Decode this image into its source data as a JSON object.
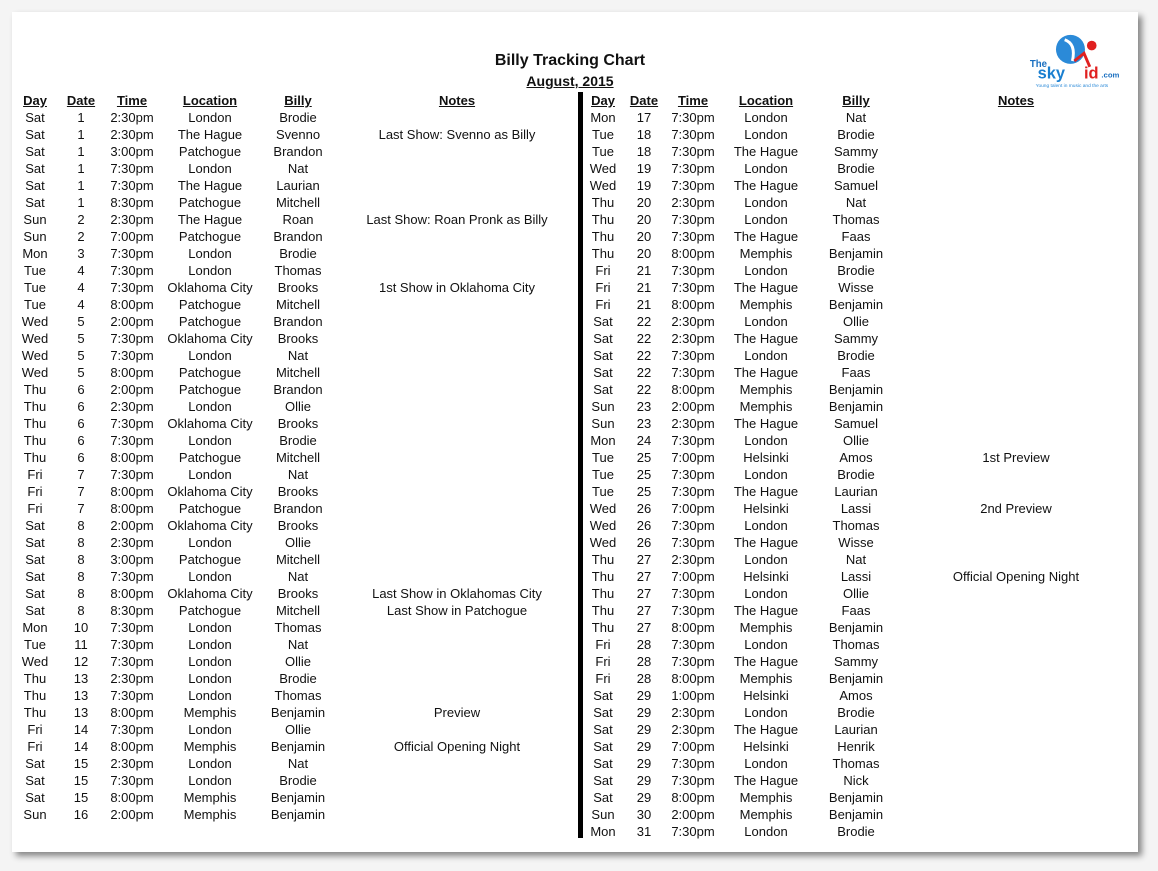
{
  "title": "Billy Tracking Chart",
  "subtitle": "August, 2015",
  "logo": {
    "text_the": "The",
    "text_brand": "skyKid",
    "text_domain": ".com",
    "tagline": "Young talent in music and the arts"
  },
  "headers": [
    "Day",
    "Date",
    "Time",
    "Location",
    "Billy",
    "Notes"
  ],
  "left_rows": [
    [
      "Sat",
      "1",
      "2:30pm",
      "London",
      "Brodie",
      ""
    ],
    [
      "Sat",
      "1",
      "2:30pm",
      "The Hague",
      "Svenno",
      "Last Show: Svenno as Billy"
    ],
    [
      "Sat",
      "1",
      "3:00pm",
      "Patchogue",
      "Brandon",
      ""
    ],
    [
      "Sat",
      "1",
      "7:30pm",
      "London",
      "Nat",
      ""
    ],
    [
      "Sat",
      "1",
      "7:30pm",
      "The Hague",
      "Laurian",
      ""
    ],
    [
      "Sat",
      "1",
      "8:30pm",
      "Patchogue",
      "Mitchell",
      ""
    ],
    [
      "Sun",
      "2",
      "2:30pm",
      "The Hague",
      "Roan",
      "Last Show: Roan Pronk as Billy"
    ],
    [
      "Sun",
      "2",
      "7:00pm",
      "Patchogue",
      "Brandon",
      ""
    ],
    [
      "Mon",
      "3",
      "7:30pm",
      "London",
      "Brodie",
      ""
    ],
    [
      "Tue",
      "4",
      "7:30pm",
      "London",
      "Thomas",
      ""
    ],
    [
      "Tue",
      "4",
      "7:30pm",
      "Oklahoma City",
      "Brooks",
      "1st Show in Oklahoma City"
    ],
    [
      "Tue",
      "4",
      "8:00pm",
      "Patchogue",
      "Mitchell",
      ""
    ],
    [
      "Wed",
      "5",
      "2:00pm",
      "Patchogue",
      "Brandon",
      ""
    ],
    [
      "Wed",
      "5",
      "7:30pm",
      "Oklahoma City",
      "Brooks",
      ""
    ],
    [
      "Wed",
      "5",
      "7:30pm",
      "London",
      "Nat",
      ""
    ],
    [
      "Wed",
      "5",
      "8:00pm",
      "Patchogue",
      "Mitchell",
      ""
    ],
    [
      "Thu",
      "6",
      "2:00pm",
      "Patchogue",
      "Brandon",
      ""
    ],
    [
      "Thu",
      "6",
      "2:30pm",
      "London",
      "Ollie",
      ""
    ],
    [
      "Thu",
      "6",
      "7:30pm",
      "Oklahoma City",
      "Brooks",
      ""
    ],
    [
      "Thu",
      "6",
      "7:30pm",
      "London",
      "Brodie",
      ""
    ],
    [
      "Thu",
      "6",
      "8:00pm",
      "Patchogue",
      "Mitchell",
      ""
    ],
    [
      "Fri",
      "7",
      "7:30pm",
      "London",
      "Nat",
      ""
    ],
    [
      "Fri",
      "7",
      "8:00pm",
      "Oklahoma City",
      "Brooks",
      ""
    ],
    [
      "Fri",
      "7",
      "8:00pm",
      "Patchogue",
      "Brandon",
      ""
    ],
    [
      "Sat",
      "8",
      "2:00pm",
      "Oklahoma City",
      "Brooks",
      ""
    ],
    [
      "Sat",
      "8",
      "2:30pm",
      "London",
      "Ollie",
      ""
    ],
    [
      "Sat",
      "8",
      "3:00pm",
      "Patchogue",
      "Mitchell",
      ""
    ],
    [
      "Sat",
      "8",
      "7:30pm",
      "London",
      "Nat",
      ""
    ],
    [
      "Sat",
      "8",
      "8:00pm",
      "Oklahoma City",
      "Brooks",
      "Last Show in Oklahomas City"
    ],
    [
      "Sat",
      "8",
      "8:30pm",
      "Patchogue",
      "Mitchell",
      "Last Show in Patchogue"
    ],
    [
      "Mon",
      "10",
      "7:30pm",
      "London",
      "Thomas",
      ""
    ],
    [
      "Tue",
      "11",
      "7:30pm",
      "London",
      "Nat",
      ""
    ],
    [
      "Wed",
      "12",
      "7:30pm",
      "London",
      "Ollie",
      ""
    ],
    [
      "Thu",
      "13",
      "2:30pm",
      "London",
      "Brodie",
      ""
    ],
    [
      "Thu",
      "13",
      "7:30pm",
      "London",
      "Thomas",
      ""
    ],
    [
      "Thu",
      "13",
      "8:00pm",
      "Memphis",
      "Benjamin",
      "Preview"
    ],
    [
      "Fri",
      "14",
      "7:30pm",
      "London",
      "Ollie",
      ""
    ],
    [
      "Fri",
      "14",
      "8:00pm",
      "Memphis",
      "Benjamin",
      "Official Opening Night"
    ],
    [
      "Sat",
      "15",
      "2:30pm",
      "London",
      "Nat",
      ""
    ],
    [
      "Sat",
      "15",
      "7:30pm",
      "London",
      "Brodie",
      ""
    ],
    [
      "Sat",
      "15",
      "8:00pm",
      "Memphis",
      "Benjamin",
      ""
    ],
    [
      "Sun",
      "16",
      "2:00pm",
      "Memphis",
      "Benjamin",
      ""
    ]
  ],
  "right_rows": [
    [
      "Mon",
      "17",
      "7:30pm",
      "London",
      "Nat",
      ""
    ],
    [
      "Tue",
      "18",
      "7:30pm",
      "London",
      "Brodie",
      ""
    ],
    [
      "Tue",
      "18",
      "7:30pm",
      "The Hague",
      "Sammy",
      ""
    ],
    [
      "Wed",
      "19",
      "7:30pm",
      "London",
      "Brodie",
      ""
    ],
    [
      "Wed",
      "19",
      "7:30pm",
      "The Hague",
      "Samuel",
      ""
    ],
    [
      "Thu",
      "20",
      "2:30pm",
      "London",
      "Nat",
      ""
    ],
    [
      "Thu",
      "20",
      "7:30pm",
      "London",
      "Thomas",
      ""
    ],
    [
      "Thu",
      "20",
      "7:30pm",
      "The Hague",
      "Faas",
      ""
    ],
    [
      "Thu",
      "20",
      "8:00pm",
      "Memphis",
      "Benjamin",
      ""
    ],
    [
      "Fri",
      "21",
      "7:30pm",
      "London",
      "Brodie",
      ""
    ],
    [
      "Fri",
      "21",
      "7:30pm",
      "The Hague",
      "Wisse",
      ""
    ],
    [
      "Fri",
      "21",
      "8:00pm",
      "Memphis",
      "Benjamin",
      ""
    ],
    [
      "Sat",
      "22",
      "2:30pm",
      "London",
      "Ollie",
      ""
    ],
    [
      "Sat",
      "22",
      "2:30pm",
      "The Hague",
      "Sammy",
      ""
    ],
    [
      "Sat",
      "22",
      "7:30pm",
      "London",
      "Brodie",
      ""
    ],
    [
      "Sat",
      "22",
      "7:30pm",
      "The Hague",
      "Faas",
      ""
    ],
    [
      "Sat",
      "22",
      "8:00pm",
      "Memphis",
      "Benjamin",
      ""
    ],
    [
      "Sun",
      "23",
      "2:00pm",
      "Memphis",
      "Benjamin",
      ""
    ],
    [
      "Sun",
      "23",
      "2:30pm",
      "The Hague",
      "Samuel",
      ""
    ],
    [
      "Mon",
      "24",
      "7:30pm",
      "London",
      "Ollie",
      ""
    ],
    [
      "Tue",
      "25",
      "7:00pm",
      "Helsinki",
      "Amos",
      "1st Preview"
    ],
    [
      "Tue",
      "25",
      "7:30pm",
      "London",
      "Brodie",
      ""
    ],
    [
      "Tue",
      "25",
      "7:30pm",
      "The Hague",
      "Laurian",
      ""
    ],
    [
      "Wed",
      "26",
      "7:00pm",
      "Helsinki",
      "Lassi",
      "2nd Preview"
    ],
    [
      "Wed",
      "26",
      "7:30pm",
      "London",
      "Thomas",
      ""
    ],
    [
      "Wed",
      "26",
      "7:30pm",
      "The Hague",
      "Wisse",
      ""
    ],
    [
      "Thu",
      "27",
      "2:30pm",
      "London",
      "Nat",
      ""
    ],
    [
      "Thu",
      "27",
      "7:00pm",
      "Helsinki",
      "Lassi",
      "Official Opening Night"
    ],
    [
      "Thu",
      "27",
      "7:30pm",
      "London",
      "Ollie",
      ""
    ],
    [
      "Thu",
      "27",
      "7:30pm",
      "The Hague",
      "Faas",
      ""
    ],
    [
      "Thu",
      "27",
      "8:00pm",
      "Memphis",
      "Benjamin",
      ""
    ],
    [
      "Fri",
      "28",
      "7:30pm",
      "London",
      "Thomas",
      ""
    ],
    [
      "Fri",
      "28",
      "7:30pm",
      "The Hague",
      "Sammy",
      ""
    ],
    [
      "Fri",
      "28",
      "8:00pm",
      "Memphis",
      "Benjamin",
      ""
    ],
    [
      "Sat",
      "29",
      "1:00pm",
      "Helsinki",
      "Amos",
      ""
    ],
    [
      "Sat",
      "29",
      "2:30pm",
      "London",
      "Brodie",
      ""
    ],
    [
      "Sat",
      "29",
      "2:30pm",
      "The Hague",
      "Laurian",
      ""
    ],
    [
      "Sat",
      "29",
      "7:00pm",
      "Helsinki",
      "Henrik",
      ""
    ],
    [
      "Sat",
      "29",
      "7:30pm",
      "London",
      "Thomas",
      ""
    ],
    [
      "Sat",
      "29",
      "7:30pm",
      "The Hague",
      "Nick",
      ""
    ],
    [
      "Sat",
      "29",
      "8:00pm",
      "Memphis",
      "Benjamin",
      ""
    ],
    [
      "Sun",
      "30",
      "2:00pm",
      "Memphis",
      "Benjamin",
      ""
    ],
    [
      "Mon",
      "31",
      "7:30pm",
      "London",
      "Brodie",
      ""
    ]
  ],
  "colors": {
    "logo_blue": "#1a7fd0",
    "logo_red": "#e02020",
    "divider": "#000000"
  }
}
